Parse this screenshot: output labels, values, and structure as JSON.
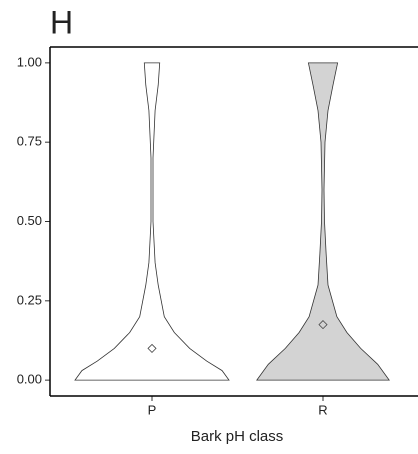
{
  "chart_data": {
    "type": "violin",
    "title": "H",
    "x_label": "Bark pH class",
    "categories": [
      "P",
      "R"
    ],
    "ylim": [
      -0.05,
      1.05
    ],
    "yticks": [
      {
        "value": 0,
        "label": "0.00"
      },
      {
        "value": 0.25,
        "label": "0.25"
      },
      {
        "value": 0.5,
        "label": "0.50"
      },
      {
        "value": 0.75,
        "label": "0.75"
      },
      {
        "value": 1,
        "label": "1.00"
      }
    ],
    "series": [
      {
        "name": "P",
        "color": "#ffffff",
        "mean": 0.1,
        "y": [
          0,
          0.03,
          0.06,
          0.1,
          0.15,
          0.2,
          0.3,
          0.37,
          0.5,
          0.7,
          0.85,
          0.93,
          1
        ],
        "density": [
          1,
          0.91,
          0.71,
          0.49,
          0.29,
          0.16,
          0.08,
          0.04,
          0.013,
          0.013,
          0.04,
          0.08,
          0.1
        ]
      },
      {
        "name": "R",
        "color": "#d3d3d3",
        "mean": 0.175,
        "y": [
          0,
          0.05,
          0.1,
          0.15,
          0.2,
          0.3,
          0.4,
          0.5,
          0.6,
          0.75,
          0.85,
          0.93,
          1
        ],
        "density": [
          0.86,
          0.71,
          0.49,
          0.31,
          0.18,
          0.065,
          0.04,
          0.02,
          0.013,
          0.026,
          0.065,
          0.13,
          0.19
        ]
      }
    ]
  }
}
